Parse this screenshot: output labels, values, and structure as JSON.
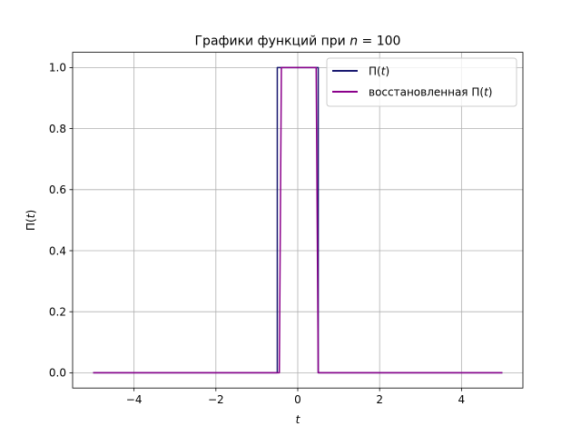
{
  "chart_data": {
    "type": "line",
    "title": {
      "text": "Графики функций при ",
      "var": "n",
      "eq": " = 100"
    },
    "xlabel": "t",
    "ylabel": {
      "pre": "Π(",
      "var": "t",
      "post": ")"
    },
    "xlim": [
      -5.5,
      5.5
    ],
    "ylim": [
      -0.05,
      1.05
    ],
    "xticks": [
      -4,
      -2,
      0,
      2,
      4
    ],
    "xtick_labels": [
      "−4",
      "−2",
      "0",
      "2",
      "4"
    ],
    "yticks": [
      0.0,
      0.2,
      0.4,
      0.6,
      0.8,
      1.0
    ],
    "ytick_labels": [
      "0.0",
      "0.2",
      "0.4",
      "0.6",
      "0.8",
      "1.0"
    ],
    "grid": true,
    "legend_position": "top-right",
    "series": [
      {
        "name": {
          "pre": "Π(",
          "var": "t",
          "post": ")"
        },
        "color": "#191970",
        "x": [
          -5,
          -0.5,
          -0.5,
          0.5,
          0.5,
          5
        ],
        "y": [
          0,
          0,
          1,
          1,
          0,
          0
        ]
      },
      {
        "name": {
          "pre": "восстановленная Π(",
          "var": "t",
          "post": ")"
        },
        "color": "#8b008b",
        "x": [
          -5,
          -0.45,
          -0.4,
          0.45,
          0.5,
          5
        ],
        "y": [
          0,
          0,
          1,
          1,
          0,
          0
        ]
      }
    ]
  }
}
